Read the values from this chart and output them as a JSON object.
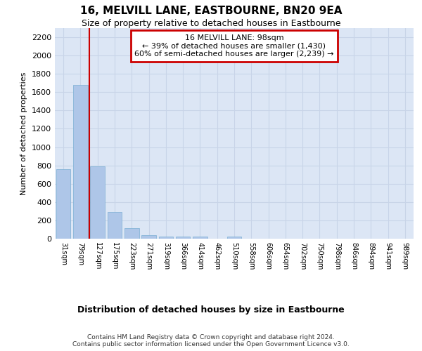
{
  "title": "16, MELVILL LANE, EASTBOURNE, BN20 9EA",
  "subtitle": "Size of property relative to detached houses in Eastbourne",
  "xlabel": "Distribution of detached houses by size in Eastbourne",
  "ylabel": "Number of detached properties",
  "footer_line1": "Contains HM Land Registry data © Crown copyright and database right 2024.",
  "footer_line2": "Contains public sector information licensed under the Open Government Licence v3.0.",
  "categories": [
    "31sqm",
    "79sqm",
    "127sqm",
    "175sqm",
    "223sqm",
    "271sqm",
    "319sqm",
    "366sqm",
    "414sqm",
    "462sqm",
    "510sqm",
    "558sqm",
    "606sqm",
    "654sqm",
    "702sqm",
    "750sqm",
    "798sqm",
    "846sqm",
    "894sqm",
    "941sqm",
    "989sqm"
  ],
  "values": [
    760,
    1680,
    790,
    295,
    115,
    40,
    25,
    20,
    20,
    0,
    20,
    0,
    0,
    0,
    0,
    0,
    0,
    0,
    0,
    0,
    0
  ],
  "bar_color": "#aec6e8",
  "bar_edge_color": "#7bafd4",
  "ylim": [
    0,
    2300
  ],
  "yticks": [
    0,
    200,
    400,
    600,
    800,
    1000,
    1200,
    1400,
    1600,
    1800,
    2000,
    2200
  ],
  "red_line_x": 1.5,
  "annotation_line1": "16 MELVILL LANE: 98sqm",
  "annotation_line2": "← 39% of detached houses are smaller (1,430)",
  "annotation_line3": "60% of semi-detached houses are larger (2,239) →",
  "annotation_border_color": "#cc0000",
  "grid_color": "#c8d4e8",
  "background_color": "#dce6f5"
}
